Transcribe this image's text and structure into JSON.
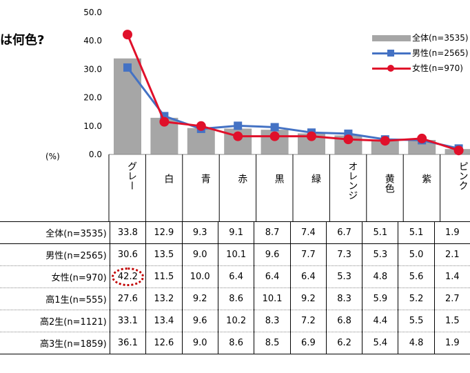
{
  "title": "は何色?",
  "unit_label": "(%)",
  "chart_data": {
    "type": "bar",
    "categories": [
      "グレー",
      "白",
      "青",
      "赤",
      "黒",
      "緑",
      "オレンジ",
      "黄色",
      "紫",
      "ピンク"
    ],
    "ylim": [
      0,
      50
    ],
    "yticks": [
      "0.0",
      "10.0",
      "20.0",
      "30.0",
      "40.0",
      "50.0"
    ],
    "legend_position": "top-right",
    "series": [
      {
        "name": "全体(n=3535)",
        "type": "bar",
        "color": "#a6a6a6",
        "values": [
          33.8,
          12.9,
          9.3,
          9.1,
          8.7,
          7.4,
          6.7,
          5.1,
          5.1,
          1.9
        ]
      },
      {
        "name": "男性(n=2565)",
        "type": "line",
        "color": "#4472c4",
        "marker": "square",
        "values": [
          30.6,
          13.5,
          9.0,
          10.1,
          9.6,
          7.7,
          7.3,
          5.3,
          5.0,
          2.1
        ]
      },
      {
        "name": "女性(n=970)",
        "type": "line",
        "color": "#e0102a",
        "marker": "circle",
        "values": [
          42.2,
          11.5,
          10.0,
          6.4,
          6.4,
          6.4,
          5.3,
          4.8,
          5.6,
          1.4
        ]
      }
    ]
  },
  "table": {
    "rows": [
      {
        "label": "全体(n=3535)",
        "values": [
          "33.8",
          "12.9",
          "9.3",
          "9.1",
          "8.7",
          "7.4",
          "6.7",
          "5.1",
          "5.1",
          "1.9"
        ]
      },
      {
        "label": "男性(n=2565)",
        "values": [
          "30.6",
          "13.5",
          "9.0",
          "10.1",
          "9.6",
          "7.7",
          "7.3",
          "5.3",
          "5.0",
          "2.1"
        ]
      },
      {
        "label": "女性(n=970)",
        "values": [
          "42.2",
          "11.5",
          "10.0",
          "6.4",
          "6.4",
          "6.4",
          "5.3",
          "4.8",
          "5.6",
          "1.4"
        ]
      },
      {
        "label": "高1生(n=555)",
        "values": [
          "27.6",
          "13.2",
          "9.2",
          "8.6",
          "10.1",
          "9.2",
          "8.3",
          "5.9",
          "5.2",
          "2.7"
        ]
      },
      {
        "label": "高2生(n=1121)",
        "values": [
          "33.1",
          "13.4",
          "9.6",
          "10.2",
          "8.3",
          "7.2",
          "6.8",
          "4.4",
          "5.5",
          "1.5"
        ]
      },
      {
        "label": "高3生(n=1859)",
        "values": [
          "36.1",
          "12.6",
          "9.0",
          "8.6",
          "8.5",
          "6.9",
          "6.2",
          "5.4",
          "4.8",
          "1.9"
        ]
      }
    ]
  }
}
